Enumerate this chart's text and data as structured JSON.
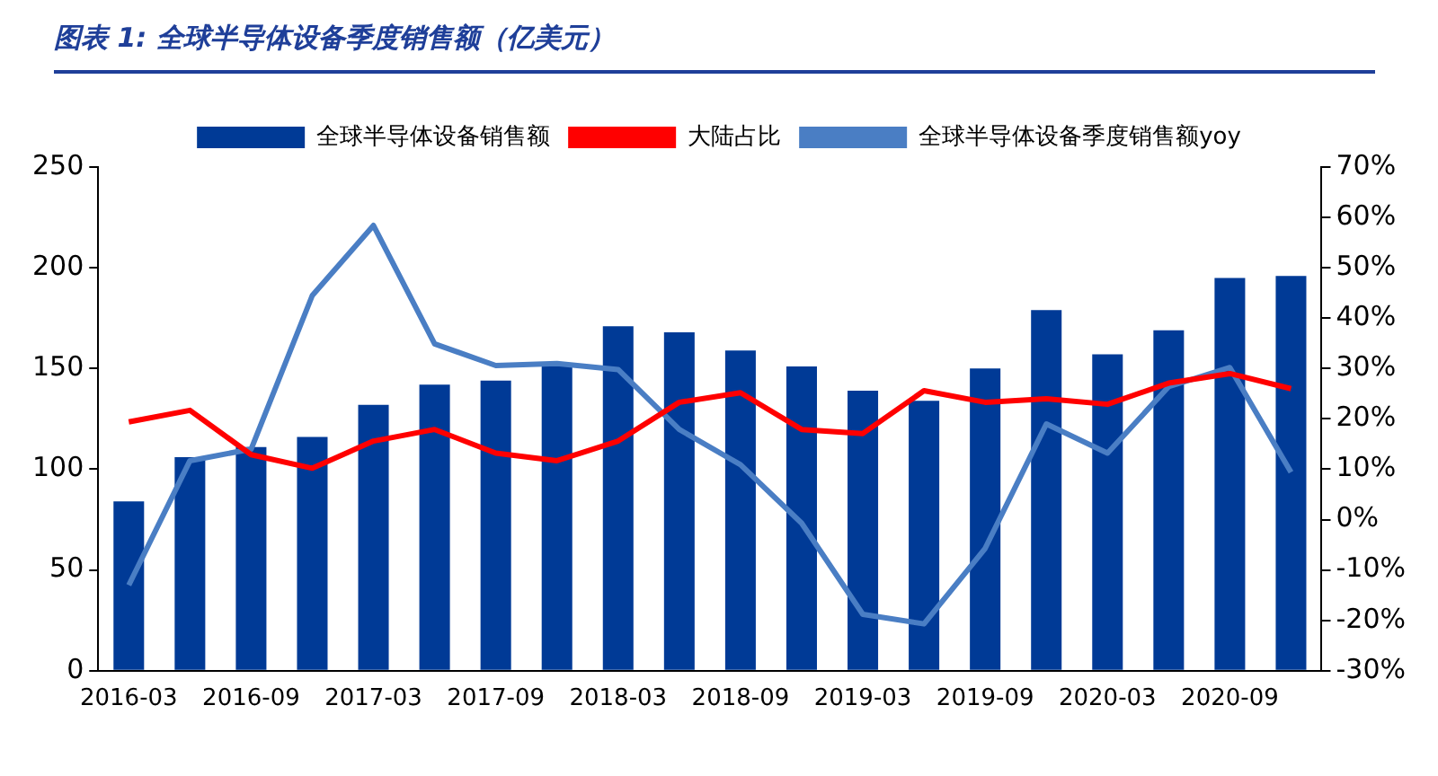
{
  "chart_data": {
    "type": "bar",
    "title": "图表 1:  全球半导体设备季度销售额（亿美元）",
    "categories": [
      "2016-03",
      null,
      "2016-09",
      null,
      "2017-03",
      null,
      "2017-09",
      null,
      "2018-03",
      null,
      "2018-09",
      null,
      "2019-03",
      null,
      "2019-09",
      null,
      "2020-03",
      null,
      "2020-09",
      null
    ],
    "series": [
      {
        "name": "全球半导体设备销售额",
        "color": "#003a96",
        "values": [
          84,
          106,
          111,
          116,
          132,
          142,
          144,
          152,
          171,
          168,
          159,
          151,
          139,
          134,
          150,
          179,
          157,
          169,
          195,
          196
        ]
      },
      {
        "name": "大陆占比",
        "type": "line",
        "axis": "y2",
        "color": "#ff0000",
        "values": [
          19.4,
          21.7,
          12.9,
          10.2,
          15.6,
          17.9,
          13.2,
          11.7,
          15.6,
          23.3,
          25.2,
          17.9,
          17.1,
          25.6,
          23.3,
          24,
          22.9,
          27.1,
          29,
          26
        ]
      },
      {
        "name": "全球半导体设备季度销售额yoy",
        "type": "line",
        "axis": "y2",
        "color": "#4a7ec4",
        "values": [
          -13,
          11.7,
          14,
          44.5,
          58.4,
          34.9,
          30.6,
          31,
          29.8,
          17.9,
          10.9,
          -0.7,
          -18.8,
          -20.7,
          -5.7,
          19,
          13.2,
          26.4,
          30.2,
          9.4
        ]
      }
    ],
    "ylim": [
      0,
      250
    ],
    "yticks": [
      0,
      50,
      100,
      150,
      200,
      250
    ],
    "y2lim": [
      -30,
      70
    ],
    "y2ticks": [
      {
        "value": -30,
        "label": "-30%"
      },
      {
        "value": -20,
        "label": "-20%"
      },
      {
        "value": -10,
        "label": "-10%"
      },
      {
        "value": 0,
        "label": "0%"
      },
      {
        "value": 10,
        "label": "10%"
      },
      {
        "value": 20,
        "label": "20%"
      },
      {
        "value": 30,
        "label": "30%"
      },
      {
        "value": 40,
        "label": "40%"
      },
      {
        "value": 50,
        "label": "50%"
      },
      {
        "value": 60,
        "label": "60%"
      },
      {
        "value": 70,
        "label": "70%"
      }
    ],
    "grid": false,
    "legend": "top",
    "marker": "none"
  }
}
